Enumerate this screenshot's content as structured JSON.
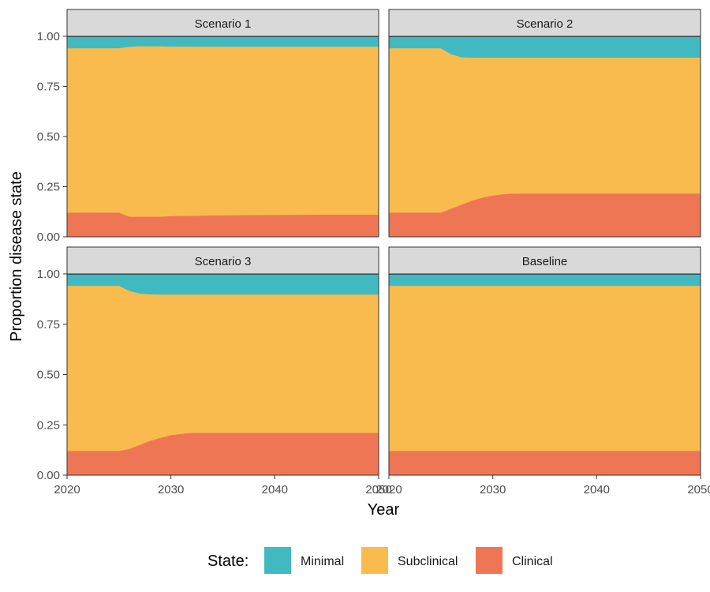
{
  "chart_data": {
    "type": "area",
    "stacked": true,
    "ylabel": "Proportion disease state",
    "xlabel": "Year",
    "xlim": [
      2020,
      2050
    ],
    "ylim": [
      0,
      1
    ],
    "x_ticks": [
      2020,
      2030,
      2040,
      2050
    ],
    "y_ticks": [
      "0.00",
      "0.25",
      "0.50",
      "0.75",
      "1.00"
    ],
    "x_tick_labels": [
      "2020",
      "2030",
      "2040",
      "2050"
    ],
    "legend": {
      "title": "State:",
      "position": "bottom",
      "entries": [
        "Minimal",
        "Subclinical",
        "Clinical"
      ]
    },
    "colors": {
      "Minimal": "#41b9c1",
      "Subclinical": "#f9bb4d",
      "Clinical": "#ef7654"
    },
    "panels": [
      {
        "title": "Scenario 1",
        "x": [
          2020,
          2025,
          2026,
          2027,
          2028,
          2029,
          2030,
          2035,
          2040,
          2045,
          2050
        ],
        "clinical": [
          0.12,
          0.12,
          0.1,
          0.1,
          0.1,
          0.1,
          0.103,
          0.107,
          0.109,
          0.11,
          0.11
        ],
        "clinical_plus_subclinical": [
          0.94,
          0.94,
          0.948,
          0.95,
          0.95,
          0.95,
          0.949,
          0.948,
          0.948,
          0.948,
          0.948
        ]
      },
      {
        "title": "Scenario 2",
        "x": [
          2020,
          2025,
          2026,
          2027,
          2028,
          2029,
          2030,
          2031,
          2032,
          2035,
          2040,
          2045,
          2050
        ],
        "clinical": [
          0.12,
          0.12,
          0.14,
          0.16,
          0.18,
          0.195,
          0.205,
          0.212,
          0.215,
          0.215,
          0.215,
          0.215,
          0.215
        ],
        "clinical_plus_subclinical": [
          0.94,
          0.94,
          0.91,
          0.895,
          0.893,
          0.893,
          0.893,
          0.893,
          0.893,
          0.893,
          0.893,
          0.893,
          0.893
        ]
      },
      {
        "title": "Scenario 3",
        "x": [
          2020,
          2025,
          2026,
          2027,
          2028,
          2029,
          2030,
          2031,
          2032,
          2035,
          2040,
          2045,
          2050
        ],
        "clinical": [
          0.12,
          0.12,
          0.13,
          0.15,
          0.17,
          0.185,
          0.198,
          0.205,
          0.21,
          0.21,
          0.21,
          0.21,
          0.21
        ],
        "clinical_plus_subclinical": [
          0.94,
          0.94,
          0.915,
          0.902,
          0.898,
          0.897,
          0.897,
          0.897,
          0.897,
          0.897,
          0.897,
          0.897,
          0.897
        ]
      },
      {
        "title": "Baseline",
        "x": [
          2020,
          2030,
          2040,
          2050
        ],
        "clinical": [
          0.12,
          0.12,
          0.12,
          0.12
        ],
        "clinical_plus_subclinical": [
          0.94,
          0.94,
          0.94,
          0.94
        ]
      }
    ]
  }
}
